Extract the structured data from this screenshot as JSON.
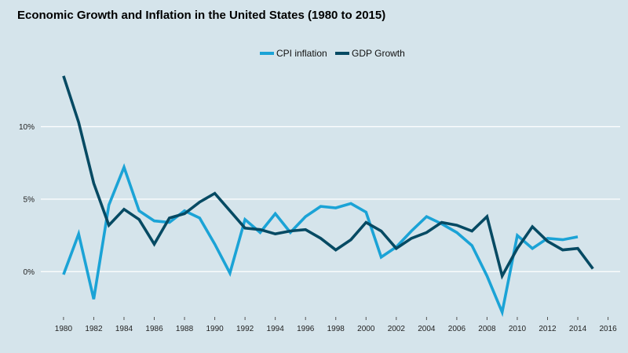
{
  "chart_data": {
    "type": "line",
    "title": "Economic Growth and Inflation in the United States (1980 to 2015)",
    "xlabel": "",
    "ylabel": "",
    "xlim": [
      1978.5,
      2016.8
    ],
    "ylim": [
      -2.8,
      13.6
    ],
    "x_ticks": [
      1980,
      1982,
      1984,
      1986,
      1988,
      1990,
      1992,
      1994,
      1996,
      1998,
      2000,
      2002,
      2004,
      2006,
      2008,
      2010,
      2012,
      2014,
      2016
    ],
    "x_tick_labels": [
      "1980",
      "1982",
      "1984",
      "1986",
      "1988",
      "1990",
      "1992",
      "1994",
      "1996",
      "1998",
      "2000",
      "2002",
      "2004",
      "2006",
      "2008",
      "2010",
      "2012",
      "2014",
      "2016"
    ],
    "y_ticks": [
      0,
      5,
      10
    ],
    "y_tick_labels": [
      "0%",
      "5%",
      "10%"
    ],
    "grid": "horizontal",
    "legend": "top-center",
    "series": [
      {
        "name": "CPI inflation",
        "color": "#1ba3d6",
        "x": [
          1980,
          1981,
          1982,
          1983,
          1984,
          1985,
          1986,
          1987,
          1988,
          1989,
          1990,
          1991,
          1992,
          1993,
          1994,
          1995,
          1996,
          1997,
          1998,
          1999,
          2000,
          2001,
          2002,
          2003,
          2004,
          2005,
          2006,
          2007,
          2008,
          2009,
          2010,
          2011,
          2012,
          2013,
          2014
        ],
        "values": [
          -0.2,
          2.6,
          -1.9,
          4.6,
          7.2,
          4.2,
          3.5,
          3.4,
          4.2,
          3.7,
          1.9,
          -0.1,
          3.6,
          2.7,
          4.0,
          2.7,
          3.8,
          4.5,
          4.4,
          4.7,
          4.1,
          1.0,
          1.7,
          2.8,
          3.8,
          3.3,
          2.7,
          1.8,
          -0.3,
          -2.8,
          2.5,
          1.6,
          2.3,
          2.2,
          2.4
        ]
      },
      {
        "name": "GDP Growth",
        "color": "#064a63",
        "x": [
          1980,
          1981,
          1982,
          1983,
          1984,
          1985,
          1986,
          1987,
          1988,
          1989,
          1990,
          1991,
          1992,
          1993,
          1994,
          1995,
          1996,
          1997,
          1998,
          1999,
          2000,
          2001,
          2002,
          2003,
          2004,
          2005,
          2006,
          2007,
          2008,
          2009,
          2010,
          2011,
          2012,
          2013,
          2014,
          2015
        ],
        "values": [
          13.5,
          10.3,
          6.1,
          3.2,
          4.3,
          3.6,
          1.9,
          3.7,
          4.0,
          4.8,
          5.4,
          4.2,
          3.0,
          2.9,
          2.6,
          2.8,
          2.9,
          2.3,
          1.5,
          2.2,
          3.4,
          2.8,
          1.6,
          2.3,
          2.7,
          3.4,
          3.2,
          2.8,
          3.8,
          -0.3,
          1.6,
          3.1,
          2.1,
          1.5,
          1.6,
          0.2
        ]
      }
    ]
  }
}
